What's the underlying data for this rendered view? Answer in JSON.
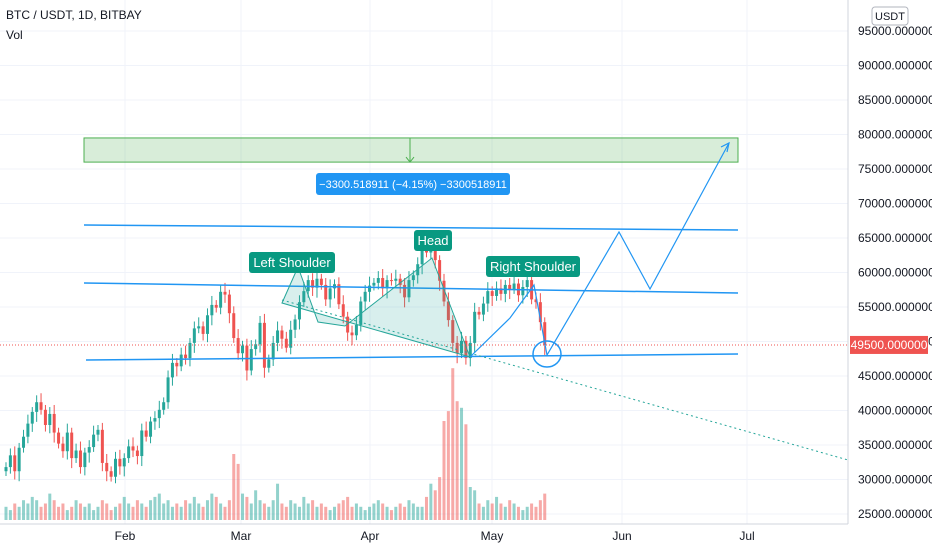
{
  "header": {
    "symbol": "BTC / USDT, 1D, BITBAY",
    "volume_label": "Vol"
  },
  "currency_badge": "USDT",
  "price_badge": "49500.000000",
  "colors": {
    "up": "#26a69a",
    "down": "#ef5350",
    "drawing": "#2196f3",
    "target_zone": "#4caf50",
    "label_bg": "#089981"
  },
  "annotations": {
    "left_shoulder": "Left Shoulder",
    "head": "Head",
    "right_shoulder": "Right Shoulder",
    "measure": "−3300.518911 (−4.15%) −3300518911"
  },
  "chart_data": {
    "type": "candlestick",
    "x_ticks": [
      "Feb",
      "Mar",
      "Apr",
      "May",
      "Jun",
      "Jul"
    ],
    "y_ticks": [
      "95000.000000",
      "90000.000000",
      "85000.000000",
      "80000.000000",
      "75000.000000",
      "70000.000000",
      "65000.000000",
      "60000.000000",
      "55000.000000",
      "50000.000000",
      "45000.000000",
      "40000.000000",
      "35000.000000",
      "30000.000000",
      "25000.000000"
    ],
    "current_price": 49500,
    "target_zone": [
      76000,
      79500
    ],
    "closes": [
      31800,
      33500,
      31200,
      34600,
      36200,
      38100,
      39800,
      41200,
      40100,
      37900,
      39500,
      36800,
      35200,
      34100,
      36800,
      33100,
      34200,
      31800,
      33900,
      34700,
      36500,
      37200,
      32400,
      31200,
      30400,
      33000,
      31900,
      33100,
      34800,
      34200,
      33400,
      37100,
      36200,
      38400,
      38900,
      40100,
      41200,
      44800,
      46900,
      46400,
      48100,
      47600,
      49800,
      51900,
      52200,
      51100,
      53800,
      55300,
      54900,
      57200,
      56800,
      54100,
      50500,
      48300,
      49400,
      45800,
      48900,
      49600,
      52700,
      46200,
      47400,
      49800,
      51600,
      50400,
      49100,
      51700,
      53200,
      55700,
      57300,
      58900,
      57800,
      59100,
      58200,
      56100,
      57700,
      58300,
      55400,
      53600,
      51300,
      50900,
      52400,
      55800,
      57200,
      58100,
      58500,
      59200,
      57700,
      58900,
      58800,
      59100,
      58200,
      56400,
      58900,
      59600,
      61200,
      63400,
      62900,
      64100,
      61800,
      58800,
      55800,
      53100,
      49800,
      48300,
      50100,
      47600,
      49800,
      54300,
      53900,
      55500,
      57300,
      56600,
      57700,
      56900,
      58200,
      57600,
      58400,
      56700,
      57900,
      58900,
      56100,
      55700,
      52800,
      49500
    ],
    "volumes": [
      4,
      3,
      5,
      4,
      6,
      5,
      7,
      6,
      4,
      5,
      8,
      6,
      4,
      5,
      3,
      4,
      6,
      5,
      4,
      5,
      3,
      4,
      6,
      5,
      3,
      4,
      5,
      7,
      5,
      4,
      6,
      5,
      4,
      6,
      7,
      8,
      5,
      6,
      4,
      5,
      4,
      6,
      5,
      7,
      5,
      4,
      6,
      8,
      7,
      5,
      4,
      6,
      20,
      17,
      8,
      7,
      5,
      9,
      6,
      5,
      4,
      6,
      11,
      5,
      4,
      6,
      5,
      4,
      7,
      5,
      6,
      4,
      5,
      4,
      3,
      4,
      5,
      6,
      7,
      4,
      5,
      4,
      3,
      4,
      5,
      6,
      5,
      4,
      3,
      4,
      5,
      4,
      6,
      5,
      4,
      4,
      7,
      11,
      9,
      13,
      30,
      33,
      46,
      36,
      34,
      29,
      10,
      9,
      5,
      4,
      6,
      5,
      7,
      5,
      4,
      6,
      5,
      4,
      3,
      4,
      5,
      4,
      6,
      8
    ]
  }
}
